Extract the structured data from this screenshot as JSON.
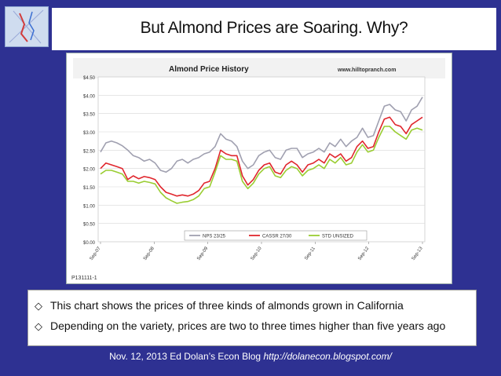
{
  "slide": {
    "title": "But Almond Prices are Soaring. Why?",
    "bullets": [
      "This chart shows the prices of three kinds of almonds grown in California",
      "Depending on the variety, prices are two to three times higher than five years ago"
    ],
    "bullet_glyph": "◇",
    "footer_text": "Nov. 12, 2013 Ed Dolan’s Econ Blog ",
    "footer_url": "http://dolanecon.blogspot.com/"
  },
  "chart_data": {
    "type": "line",
    "title": "Almond Price History",
    "source_label": "www.hilltopranch.com",
    "footnote": "P131111-1",
    "x_ticks": [
      "Sep-07",
      "Sep-08",
      "Sep-09",
      "Sep-10",
      "Sep-11",
      "Sep-12",
      "Sep-13"
    ],
    "y_ticks": [
      "$0.00",
      "$0.50",
      "$1.00",
      "$1.50",
      "$2.00",
      "$2.50",
      "$3.00",
      "$3.50",
      "$4.00",
      "$4.50"
    ],
    "ylim": [
      0,
      4.5
    ],
    "grid": true,
    "legend_position": "bottom",
    "colors": {
      "nps": "#a0a0b0",
      "cassr": "#e0262d",
      "std": "#9acd32"
    },
    "series": [
      {
        "name": "NPS 23/25",
        "color_key": "nps",
        "values": [
          2.45,
          2.7,
          2.75,
          2.7,
          2.62,
          2.5,
          2.35,
          2.3,
          2.2,
          2.25,
          2.15,
          1.95,
          1.9,
          2.0,
          2.2,
          2.25,
          2.15,
          2.25,
          2.3,
          2.4,
          2.45,
          2.6,
          2.95,
          2.8,
          2.75,
          2.6,
          2.2,
          2.0,
          2.1,
          2.35,
          2.45,
          2.5,
          2.3,
          2.25,
          2.5,
          2.55,
          2.55,
          2.3,
          2.4,
          2.45,
          2.55,
          2.45,
          2.7,
          2.6,
          2.8,
          2.6,
          2.75,
          2.85,
          3.1,
          2.85,
          2.9,
          3.3,
          3.7,
          3.75,
          3.6,
          3.55,
          3.3,
          3.6,
          3.7,
          3.95
        ]
      },
      {
        "name": "CASSR 27/30",
        "color_key": "cassr",
        "values": [
          2.0,
          2.15,
          2.1,
          2.05,
          2.0,
          1.7,
          1.8,
          1.72,
          1.78,
          1.75,
          1.7,
          1.5,
          1.35,
          1.3,
          1.25,
          1.28,
          1.25,
          1.3,
          1.4,
          1.6,
          1.65,
          2.0,
          2.5,
          2.4,
          2.35,
          2.35,
          1.8,
          1.55,
          1.7,
          1.95,
          2.1,
          2.15,
          1.9,
          1.85,
          2.1,
          2.2,
          2.1,
          1.9,
          2.1,
          2.15,
          2.25,
          2.15,
          2.4,
          2.3,
          2.4,
          2.2,
          2.3,
          2.6,
          2.75,
          2.55,
          2.6,
          3.0,
          3.35,
          3.4,
          3.2,
          3.15,
          2.95,
          3.2,
          3.3,
          3.4
        ]
      },
      {
        "name": "STD UNSIZED",
        "color_key": "std",
        "values": [
          1.85,
          1.95,
          1.95,
          1.9,
          1.85,
          1.65,
          1.65,
          1.6,
          1.65,
          1.62,
          1.58,
          1.35,
          1.2,
          1.12,
          1.05,
          1.08,
          1.1,
          1.15,
          1.25,
          1.45,
          1.5,
          1.9,
          2.35,
          2.25,
          2.25,
          2.2,
          1.65,
          1.45,
          1.6,
          1.85,
          2.0,
          2.05,
          1.8,
          1.75,
          1.95,
          2.05,
          2.0,
          1.8,
          1.95,
          2.0,
          2.1,
          2.0,
          2.25,
          2.15,
          2.3,
          2.1,
          2.15,
          2.45,
          2.65,
          2.45,
          2.5,
          2.85,
          3.15,
          3.15,
          3.0,
          2.9,
          2.8,
          3.05,
          3.1,
          3.05
        ]
      }
    ]
  }
}
